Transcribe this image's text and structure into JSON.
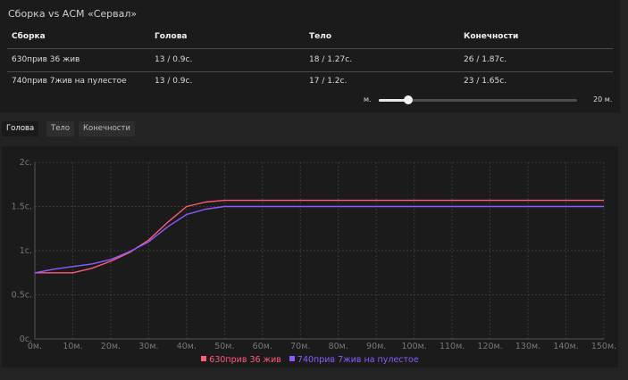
{
  "panel": {
    "title": "Сборка vs АСМ «Сервал»",
    "columns": [
      "Сборка",
      "Голова",
      "Тело",
      "Конечности"
    ],
    "rows": [
      [
        "630прив 36 жив",
        "13 / 0.9с.",
        "18 / 1.27с.",
        "26 / 1.87с."
      ],
      [
        "740прив 7жив на пулестое",
        "13 / 0.9с.",
        "17 / 1.2с.",
        "23 / 1.65с."
      ]
    ]
  },
  "slider": {
    "min_label": "м.",
    "max_label": "20 м.",
    "value_fraction": 0.15
  },
  "tabs": [
    "Голова",
    "Тело",
    "Конечности"
  ],
  "active_tab": "Голова",
  "chart_data": {
    "type": "line",
    "x": [
      0,
      5,
      10,
      15,
      20,
      25,
      30,
      35,
      40,
      45,
      50,
      55,
      60,
      70,
      80,
      90,
      100,
      110,
      120,
      130,
      140,
      150
    ],
    "series": [
      {
        "name": "630прив 36 жив",
        "color": "#ff5a78",
        "values": [
          0.75,
          0.75,
          0.75,
          0.8,
          0.88,
          0.98,
          1.12,
          1.32,
          1.5,
          1.55,
          1.57,
          1.57,
          1.57,
          1.57,
          1.57,
          1.57,
          1.57,
          1.57,
          1.57,
          1.57,
          1.57,
          1.57
        ]
      },
      {
        "name": "740прив 7жив на пулестое",
        "color": "#8a5cff",
        "values": [
          0.75,
          0.79,
          0.82,
          0.85,
          0.9,
          0.99,
          1.1,
          1.27,
          1.41,
          1.47,
          1.5,
          1.5,
          1.5,
          1.5,
          1.5,
          1.5,
          1.5,
          1.5,
          1.5,
          1.5,
          1.5,
          1.5
        ]
      }
    ],
    "xticks": [
      "0м.",
      "10м.",
      "20м.",
      "30м.",
      "40м.",
      "50м.",
      "60м.",
      "70м.",
      "80м.",
      "90м.",
      "100м.",
      "110м.",
      "120м.",
      "130м.",
      "140м.",
      "150м."
    ],
    "yticks": [
      "0с.",
      "0.5с.",
      "1с.",
      "1.5с.",
      "2с."
    ],
    "xlim": [
      0,
      150
    ],
    "ylim": [
      0,
      2
    ],
    "grid": true,
    "legend_position": "bottom"
  }
}
